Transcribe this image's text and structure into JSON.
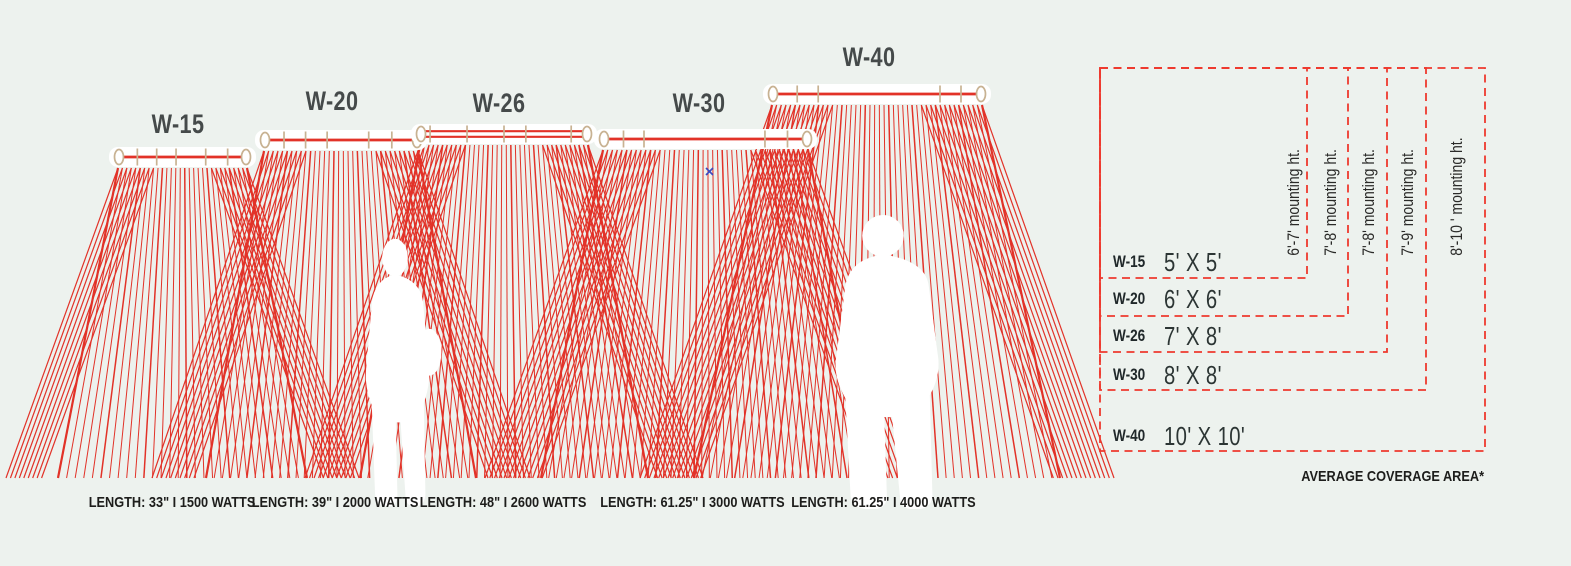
{
  "title": "Infrared heater models coverage diagram",
  "colors": {
    "background": "#edf2ee",
    "heat_line_red": "#e23228",
    "dashed_box_red": "#ee3a2e",
    "heater_tan": "#c8b292",
    "text_dark": "#454a4a",
    "marker_blue": "#3d4bc0"
  },
  "heaters": [
    {
      "model": "W-15",
      "spec": "LENGTH: 33\" I 1500 WATTS",
      "coverage": "5' X 5'",
      "mounting_height": "6'-7' mounting ht."
    },
    {
      "model": "W-20",
      "spec": "LENGTH: 39\" I 2000 WATTS",
      "coverage": "6' X 6'",
      "mounting_height": "7'-8' mounting ht."
    },
    {
      "model": "W-26",
      "spec": "LENGTH: 48\" I 2600 WATTS",
      "coverage": "7' X 8'",
      "mounting_height": "7'-8' mounting ht."
    },
    {
      "model": "W-30",
      "spec": "LENGTH: 61.25\" I 3000 WATTS",
      "coverage": "8' X 8'",
      "mounting_height": "7'-9' mounting ht."
    },
    {
      "model": "W-40",
      "spec": "LENGTH: 61.25\" I 4000 WATTS",
      "coverage": "10' X 10'",
      "mounting_height": "8'-10 ' mounting ht."
    }
  ],
  "coverage_table": {
    "footnote": "AVERAGE COVERAGE AREA*"
  }
}
